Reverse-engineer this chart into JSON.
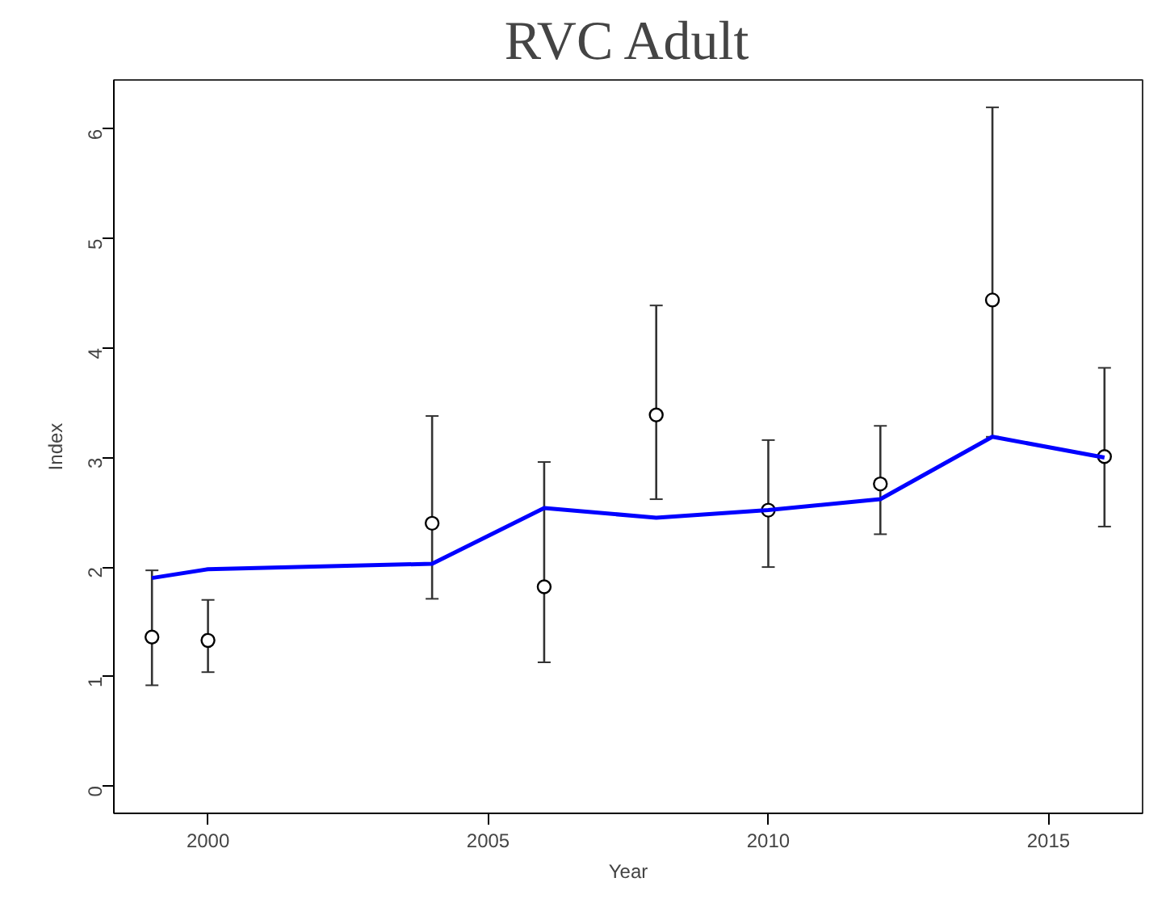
{
  "chart_data": {
    "type": "scatter",
    "title": "RVC Adult",
    "xlabel": "Year",
    "ylabel": "Index",
    "x": [
      1999,
      2000,
      2004,
      2006,
      2008,
      2010,
      2012,
      2014,
      2016
    ],
    "series": [
      {
        "color": "#000000",
        "marker": "circle",
        "values": [
          1.36,
          1.33,
          2.4,
          1.82,
          3.39,
          2.52,
          2.76,
          4.44,
          3.01
        ],
        "errors": [
          [
            0.92,
            1.97
          ],
          [
            1.04,
            1.7
          ],
          [
            1.71,
            3.38
          ],
          [
            1.13,
            2.96
          ],
          [
            2.62,
            4.39
          ],
          [
            2.0,
            3.16
          ],
          [
            2.3,
            3.29
          ],
          [
            3.19,
            6.2
          ],
          [
            2.37,
            3.82
          ]
        ]
      },
      {
        "type": "line",
        "color": "#0000ff",
        "marker": "none",
        "values": [
          1.9,
          1.98,
          2.03,
          2.54,
          2.45,
          2.52,
          2.62,
          3.19,
          3.0
        ]
      }
    ],
    "xlim": [
      1998.32,
      2016.68
    ],
    "ylim": [
      -0.25,
      6.45
    ],
    "xticks": [
      2000,
      2005,
      2010,
      2015
    ],
    "yticks": [
      0,
      1,
      2,
      3,
      4,
      5,
      6
    ],
    "grid": false
  }
}
